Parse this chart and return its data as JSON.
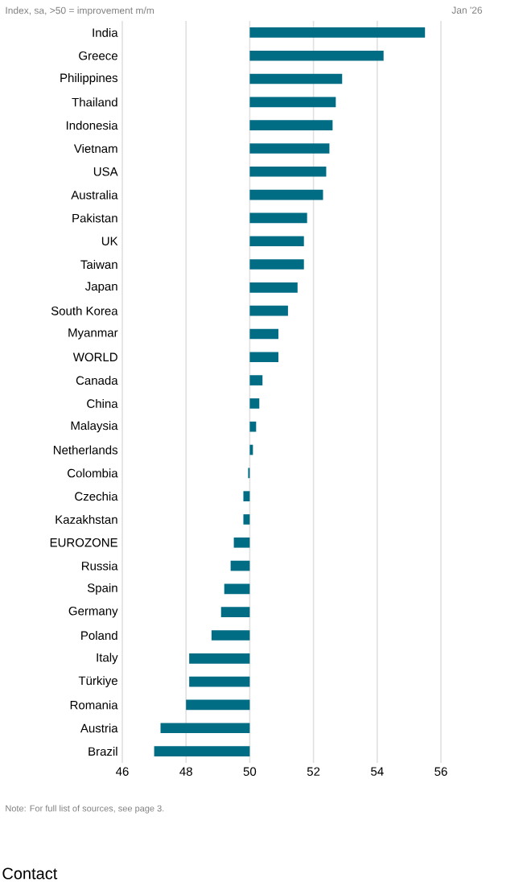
{
  "chart_data": {
    "type": "bar",
    "orientation": "horizontal",
    "subtitle": "Index, sa, >50 = improvement m/m",
    "categories": [
      "India",
      "Greece",
      "Philippines",
      "Thailand",
      "Indonesia",
      "Vietnam",
      "USA",
      "Australia",
      "Pakistan",
      "UK",
      "Taiwan",
      "Japan",
      "South Korea",
      "Myanmar",
      "WORLD",
      "Canada",
      "China",
      "Malaysia",
      "Netherlands",
      "Colombia",
      "Czechia",
      "Kazakhstan",
      "EUROZONE",
      "Russia",
      "Spain",
      "Germany",
      "Poland",
      "Italy",
      "Türkiye",
      "Romania",
      "Austria",
      "Brazil"
    ],
    "base": [
      50,
      50,
      50,
      50,
      50,
      50,
      50,
      50,
      50,
      50,
      50,
      50,
      50,
      50,
      50,
      50,
      50,
      50,
      50,
      50,
      50,
      50,
      50,
      50,
      50,
      50,
      50,
      50,
      50,
      50,
      50,
      50
    ],
    "values": [
      5.5,
      4.2,
      2.9,
      2.7,
      2.6,
      2.5,
      2.4,
      2.3,
      1.8,
      1.7,
      1.7,
      1.5,
      1.2,
      0.9,
      0.9,
      0.4,
      0.3,
      0.2,
      0.1,
      -0.05,
      -0.2,
      -0.2,
      -0.5,
      -0.6,
      -0.8,
      -0.9,
      -1.2,
      -1.9,
      -1.9,
      -2.0,
      -2.8,
      -3.0
    ],
    "color": "#006d85",
    "xlim": [
      46,
      56
    ],
    "xticks": [
      46,
      48,
      50,
      52,
      54,
      56
    ],
    "grid": "x",
    "annotations": [
      "Jan '26",
      "Note: For full list of sources, see page 3.",
      "Contact"
    ]
  }
}
